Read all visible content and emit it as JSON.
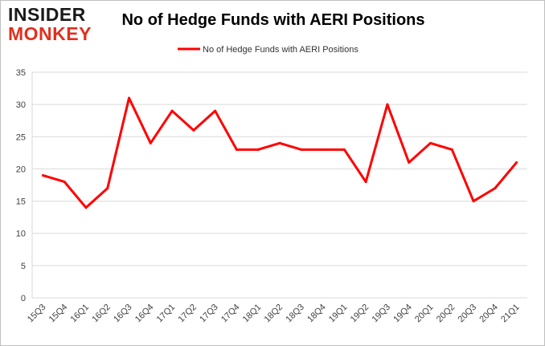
{
  "logo": {
    "line1": "INSIDER",
    "line2": "MONKEY"
  },
  "chart_data": {
    "type": "line",
    "title": "No of Hedge Funds with AERI Positions",
    "xlabel": "",
    "ylabel": "",
    "categories": [
      "15Q3",
      "15Q4",
      "16Q1",
      "16Q2",
      "16Q3",
      "16Q4",
      "17Q1",
      "17Q2",
      "17Q3",
      "17Q4",
      "18Q1",
      "18Q2",
      "18Q3",
      "18Q4",
      "19Q1",
      "19Q2",
      "19Q3",
      "19Q4",
      "20Q1",
      "20Q2",
      "20Q3",
      "20Q4",
      "21Q1"
    ],
    "series": [
      {
        "name": "No of Hedge Funds with AERI Positions",
        "color": "#ff0000",
        "values": [
          19,
          18,
          14,
          17,
          31,
          24,
          29,
          26,
          29,
          23,
          23,
          24,
          23,
          23,
          23,
          18,
          30,
          21,
          24,
          23,
          15,
          17,
          21
        ]
      }
    ],
    "ylim": [
      0,
      35
    ],
    "yticks": [
      0,
      5,
      10,
      15,
      20,
      25,
      30,
      35
    ],
    "grid": true,
    "legend_position": "top-center"
  }
}
